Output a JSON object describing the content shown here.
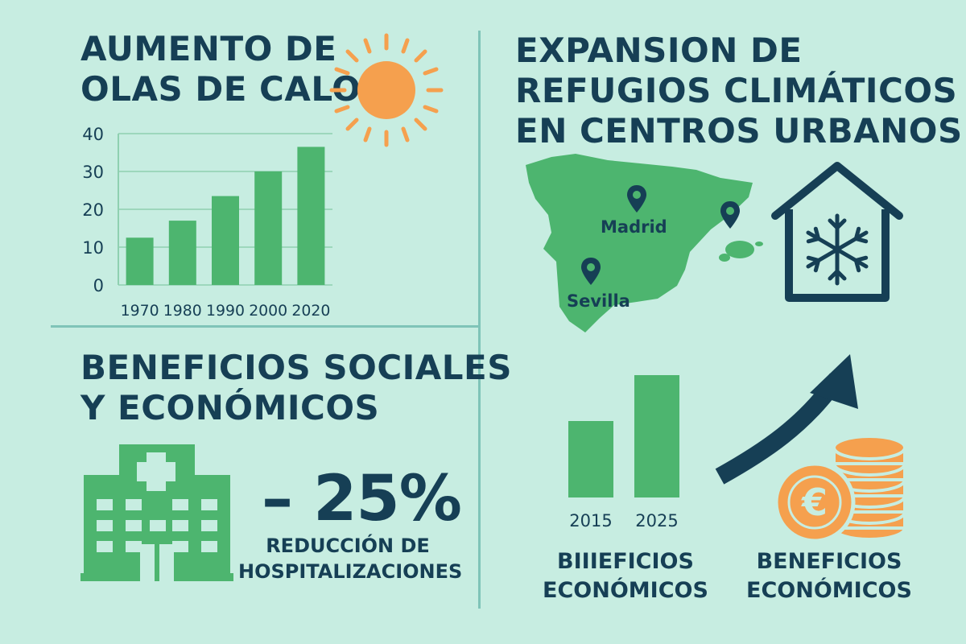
{
  "panels": {
    "heatwaves": {
      "title_lines": [
        "Aumento de",
        "olas de calor"
      ],
      "sun_icon": "sun-icon"
    },
    "refuges": {
      "title_lines": [
        "Expansion de",
        "refugios climáticos",
        "en centros urbanos"
      ],
      "map": {
        "icon": "spain-map-icon",
        "cities": [
          "Madrid",
          "Sevilla"
        ],
        "pin_icon": "map-pin-icon"
      },
      "house_icon": "house-snowflake-icon"
    },
    "benefits": {
      "title_lines": [
        "Beneficios sociales",
        "y económicos"
      ],
      "hospital_icon": "hospital-icon",
      "percentage": "– 25%",
      "caption_lines": [
        "Reducción de",
        "hospitalizaciones"
      ]
    },
    "economic": {
      "caption_left_lines": [
        "Biiieficios",
        "económicos"
      ],
      "caption_right_lines": [
        "Beneficios",
        "económicos"
      ],
      "arrow_icon": "trend-arrow-icon",
      "coins_icon": "euro-coins-icon",
      "euro_symbol": "€"
    }
  },
  "colors": {
    "background": "#c7ede1",
    "green": "#4db56f",
    "navy": "#163f55",
    "orange": "#f5a04e",
    "divider": "#7fc4b8"
  },
  "chart_data": [
    {
      "type": "bar",
      "categories": [
        "1970",
        "1980",
        "1990",
        "2000",
        "2020"
      ],
      "values": [
        12.5,
        17,
        23.5,
        30,
        36.5
      ],
      "ylim": [
        0,
        40
      ],
      "yticks": [
        0,
        10,
        20,
        30,
        40
      ],
      "xlabel": "",
      "ylabel": "",
      "title": "",
      "grid": true
    },
    {
      "type": "bar",
      "categories": [
        "2015",
        "2025"
      ],
      "values": [
        2,
        3.2
      ],
      "title": "",
      "xlabel": "",
      "ylabel": "",
      "axis": "none"
    }
  ]
}
